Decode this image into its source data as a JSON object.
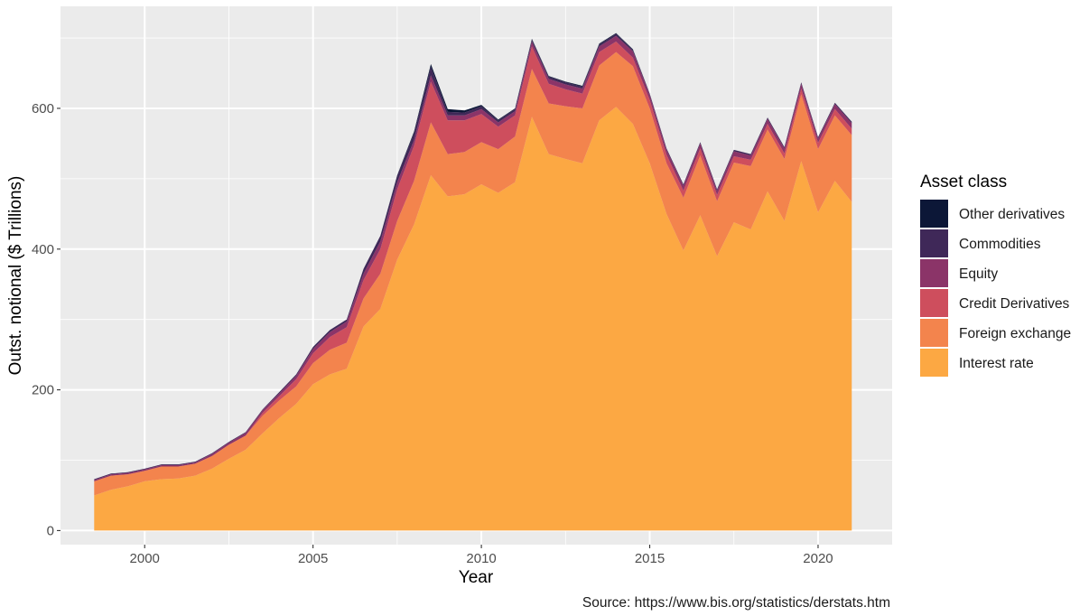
{
  "chart_data": {
    "type": "area",
    "stacked": true,
    "title": "",
    "xlabel": "Year",
    "ylabel": "Outst. notional ($ Trillions)",
    "caption": "Source: https://www.bis.org/statistics/derstats.htm",
    "xlim": [
      1997.5,
      2022.2
    ],
    "ylim": [
      -20,
      745
    ],
    "x_ticks": [
      2000,
      2005,
      2010,
      2015,
      2020
    ],
    "x_tick_labels": [
      "2000",
      "2005",
      "2010",
      "2015",
      "2020"
    ],
    "y_ticks": [
      0,
      200,
      400,
      600
    ],
    "y_tick_labels": [
      "0",
      "200",
      "400",
      "600"
    ],
    "grid": true,
    "legend_title": "Asset class",
    "legend_position": "right",
    "x": [
      1998.5,
      1999.0,
      1999.5,
      2000.0,
      2000.5,
      2001.0,
      2001.5,
      2002.0,
      2002.5,
      2003.0,
      2003.5,
      2004.0,
      2004.5,
      2005.0,
      2005.5,
      2006.0,
      2006.5,
      2007.0,
      2007.5,
      2008.0,
      2008.5,
      2009.0,
      2009.5,
      2010.0,
      2010.5,
      2011.0,
      2011.5,
      2012.0,
      2012.5,
      2013.0,
      2013.5,
      2014.0,
      2014.5,
      2015.0,
      2015.5,
      2016.0,
      2016.5,
      2017.0,
      2017.5,
      2018.0,
      2018.5,
      2019.0,
      2019.5,
      2020.0,
      2020.5,
      2021.0
    ],
    "series": [
      {
        "name": "Interest rate",
        "color": "#FCA843",
        "values": [
          50,
          58,
          63,
          70,
          73,
          74,
          78,
          88,
          102,
          115,
          138,
          160,
          180,
          208,
          222,
          230,
          290,
          315,
          385,
          435,
          505,
          475,
          478,
          492,
          480,
          495,
          588,
          535,
          528,
          522,
          583,
          602,
          578,
          522,
          450,
          398,
          448,
          390,
          438,
          428,
          482,
          440,
          525,
          452,
          497,
          467
        ]
      },
      {
        "name": "Foreign exchange",
        "color": "#F3844D",
        "values": [
          20,
          20,
          17,
          15,
          18,
          17,
          17,
          18,
          20,
          20,
          25,
          25,
          25,
          30,
          35,
          37,
          40,
          50,
          55,
          62,
          75,
          60,
          60,
          60,
          62,
          65,
          68,
          72,
          75,
          78,
          78,
          78,
          82,
          78,
          72,
          75,
          85,
          78,
          85,
          90,
          88,
          88,
          95,
          90,
          93,
          95
        ]
      },
      {
        "name": "Credit Derivatives",
        "color": "#CE4E5D",
        "values": [
          0,
          0,
          0,
          0,
          0,
          0,
          0,
          0,
          0,
          0,
          4,
          6,
          10,
          14,
          18,
          22,
          26,
          35,
          45,
          50,
          58,
          48,
          45,
          40,
          32,
          30,
          32,
          28,
          24,
          21,
          19,
          15,
          12,
          12,
          12,
          10,
          10,
          9,
          9,
          9,
          8,
          8,
          8,
          9,
          9,
          9
        ]
      },
      {
        "name": "Equity",
        "color": "#8B3468",
        "values": [
          2,
          2,
          2,
          2,
          2,
          2,
          2,
          3,
          3,
          4,
          4,
          4,
          5,
          6,
          7,
          8,
          9,
          11,
          10,
          8,
          9,
          7,
          7,
          7,
          6,
          6,
          7,
          7,
          7,
          7,
          8,
          8,
          9,
          7,
          7,
          7,
          7,
          6,
          7,
          6,
          7,
          7,
          7,
          6,
          7,
          8
        ]
      },
      {
        "name": "Commodities",
        "color": "#3F2858",
        "values": [
          1,
          1,
          1,
          1,
          1,
          1,
          1,
          1,
          1,
          1,
          1,
          2,
          2,
          3,
          3,
          3,
          7,
          8,
          9,
          10,
          12,
          5,
          4,
          4,
          3,
          3,
          3,
          3,
          3,
          3,
          3,
          3,
          2,
          2,
          2,
          2,
          2,
          2,
          2,
          2,
          2,
          2,
          2,
          2,
          2,
          2
        ]
      },
      {
        "name": "Other derivatives",
        "color": "#0C1737",
        "values": [
          0,
          0,
          0,
          0,
          0,
          0,
          0,
          0,
          0,
          0,
          0,
          0,
          0,
          0,
          0,
          0,
          0,
          0,
          1,
          2,
          4,
          4,
          3,
          2,
          1,
          1,
          1,
          1,
          1,
          1,
          1,
          1,
          1,
          0,
          0,
          0,
          0,
          0,
          0,
          0,
          0,
          0,
          0,
          0,
          0,
          0
        ]
      }
    ],
    "legend_order": [
      "Other derivatives",
      "Commodities",
      "Equity",
      "Credit Derivatives",
      "Foreign exchange",
      "Interest rate"
    ]
  }
}
